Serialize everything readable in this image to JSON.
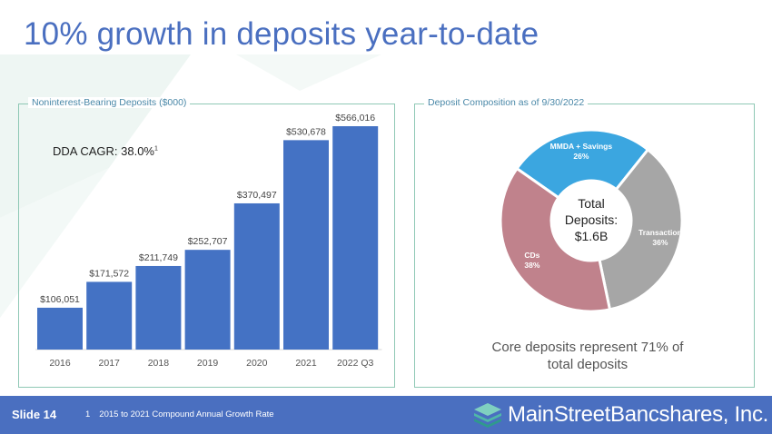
{
  "page": {
    "title": "10% growth in deposits year-to-date",
    "slide_label": "Slide 14",
    "footnote_mark": "1",
    "footnote_text": "2015 to 2021 Compound Annual Growth Rate",
    "logo_text": "MainStreetBancshares, Inc.",
    "logo_icon": "layered-diamond-icon"
  },
  "bar_panel": {
    "label": "Noninterest-Bearing Deposits ($000)",
    "cagr_text": "DDA CAGR: 38.0%",
    "cagr_sup": "1"
  },
  "pie_panel": {
    "label": "Deposit Composition as of 9/30/2022",
    "center_line1": "Total",
    "center_line2": "Deposits:",
    "center_line3": "$1.6B",
    "core_note_line1": "Core deposits represent 71% of",
    "core_note_line2": "total deposits"
  },
  "colors": {
    "accent": "#4a6fc0",
    "bar": "#4472c4",
    "panel_border": "#8fc8b5",
    "slice_mmda": "#3ba6e0",
    "slice_transaction": "#a6a6a6",
    "slice_cds": "#c0828c"
  },
  "chart_data": [
    {
      "type": "bar",
      "categories": [
        "2016",
        "2017",
        "2018",
        "2019",
        "2020",
        "2021",
        "2022 Q3"
      ],
      "values": [
        106051,
        171572,
        211749,
        252707,
        370497,
        530678,
        566016
      ],
      "data_labels": [
        "$106,051",
        "$171,572",
        "$211,749",
        "$252,707",
        "$370,497",
        "$530,678",
        "$566,016"
      ],
      "title": "Noninterest-Bearing Deposits ($000)",
      "ylim": [
        0,
        566016
      ],
      "grid": false
    },
    {
      "type": "pie",
      "title": "Deposit Composition as of 9/30/2022",
      "slices": [
        {
          "name": "MMDA + Savings",
          "value": 26,
          "label": "26%"
        },
        {
          "name": "Transaction",
          "value": 36,
          "label": "36%"
        },
        {
          "name": "CDs",
          "value": 38,
          "label": "38%"
        }
      ],
      "start_angle_deg": -55,
      "donut": true
    }
  ]
}
